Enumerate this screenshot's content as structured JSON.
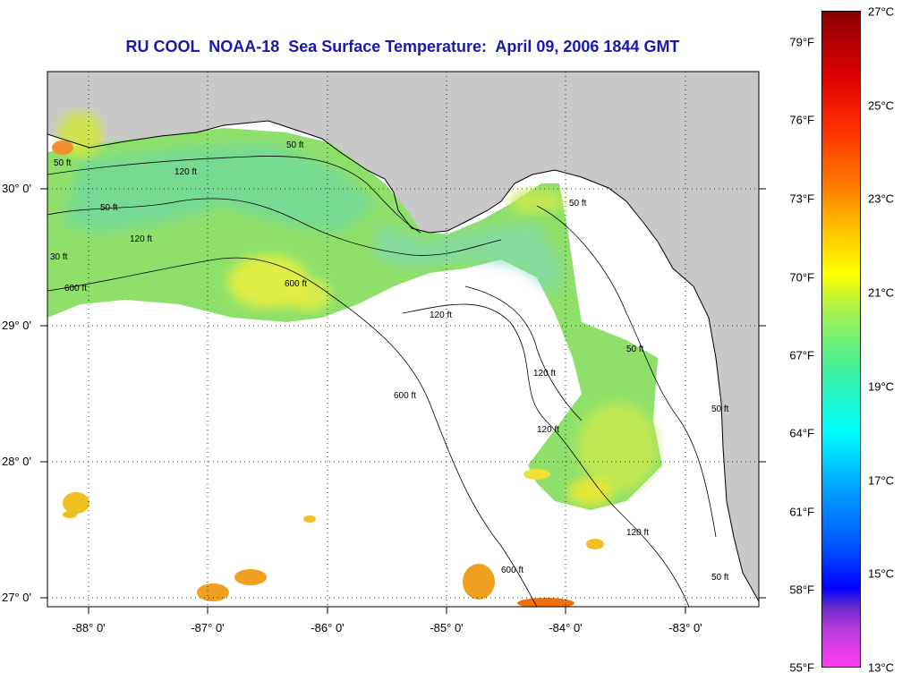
{
  "title": "RU COOL  NOAA-18  Sea Surface Temperature:  April 09, 2006 1844 GMT",
  "map": {
    "lon_labels": [
      "-88° 0'",
      "-87° 0'",
      "-86° 0'",
      "-85° 0'",
      "-84° 0'",
      "-83° 0'"
    ],
    "lat_labels": [
      "30° 0'",
      "29° 0'",
      "28° 0'",
      "27° 0'"
    ],
    "contour_labels": [
      "50 ft",
      "50 ft",
      "120 ft",
      "600 ft",
      "600 ft",
      "120 ft",
      "50 ft",
      "120 ft",
      "600 ft",
      "50 ft",
      "120 ft",
      "120 ft",
      "600 ft",
      "50 ft",
      "50 ft",
      "30 ft",
      "120 ft",
      "50 ft"
    ],
    "land_color": "#c8c8c8",
    "nodata_color": "#ffffff"
  },
  "colorbar": {
    "fahrenheit_labels": [
      "79°F",
      "76°F",
      "73°F",
      "70°F",
      "67°F",
      "64°F",
      "61°F",
      "58°F",
      "55°F"
    ],
    "celsius_labels": [
      "27°C",
      "25°C",
      "23°C",
      "21°C",
      "19°C",
      "17°C",
      "15°C",
      "13°C"
    ],
    "min_c": 13,
    "max_c": 27
  }
}
